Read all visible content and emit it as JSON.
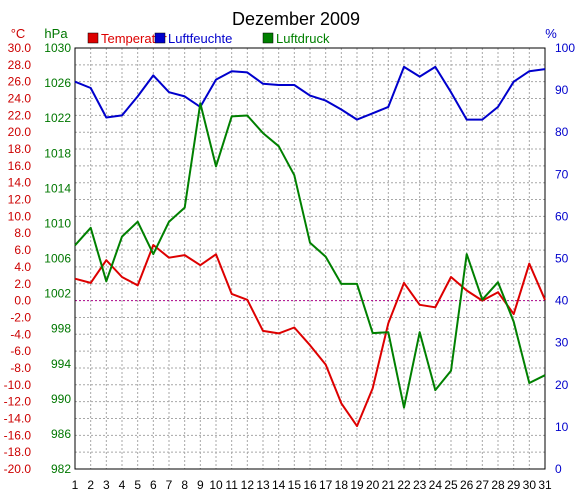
{
  "chart_data": {
    "type": "line",
    "title": "Dezember 2009",
    "x": [
      1,
      2,
      3,
      4,
      5,
      6,
      7,
      8,
      9,
      10,
      11,
      12,
      13,
      14,
      15,
      16,
      17,
      18,
      19,
      20,
      21,
      22,
      23,
      24,
      25,
      26,
      27,
      28,
      29,
      30,
      31
    ],
    "axes": {
      "temperature": {
        "unit": "°C",
        "range": [
          -20,
          30
        ],
        "step": 2,
        "color": "#cc0000"
      },
      "pressure": {
        "unit": "hPa",
        "range": [
          982,
          1030
        ],
        "step": 4,
        "color": "#007700"
      },
      "humidity": {
        "unit": "%",
        "range": [
          0,
          100
        ],
        "step": 10,
        "color": "#0000cc"
      }
    },
    "legend": [
      {
        "name": "Temperatur",
        "color": "#dd0000"
      },
      {
        "name": "Luftfeuchte",
        "color": "#0000cc"
      },
      {
        "name": "Luftdruck",
        "color": "#008000"
      }
    ],
    "series": [
      {
        "name": "Temperatur",
        "axis": "temperature",
        "color": "#dd0000",
        "values": [
          2.6,
          2.1,
          4.8,
          2.8,
          1.8,
          6.6,
          5.1,
          5.4,
          4.2,
          5.5,
          0.8,
          0.1,
          -3.6,
          -3.9,
          -3.2,
          -5.3,
          -7.6,
          -12.2,
          -14.9,
          -10.4,
          -2.7,
          2.1,
          -0.5,
          -0.8,
          2.8,
          1.2,
          0.0,
          1.0,
          -1.6,
          4.4,
          0.1
        ]
      },
      {
        "name": "Luftfeuchte",
        "axis": "humidity",
        "color": "#0000cc",
        "values": [
          92,
          90.5,
          83.5,
          84,
          88.5,
          93.5,
          89.5,
          88.5,
          86,
          92.5,
          94.5,
          94.2,
          91.5,
          91.2,
          91.2,
          88.7,
          87.5,
          85.4,
          83,
          84.5,
          86,
          95.5,
          93.2,
          95.5,
          89.5,
          83,
          83,
          86,
          92,
          94.5,
          95
        ]
      },
      {
        "name": "Luftdruck",
        "axis": "pressure",
        "color": "#008000",
        "values": [
          1007.5,
          1009.5,
          1003.4,
          1008.5,
          1010.2,
          1006.5,
          1010.2,
          1011.8,
          1023.7,
          1016.5,
          1022.2,
          1022.3,
          1020.3,
          1018.8,
          1015.5,
          1007.8,
          1006.2,
          1003.1,
          1003.1,
          997.5,
          997.6,
          989.0,
          997.6,
          991.0,
          993.2,
          1006.5,
          1001.3,
          1003.3,
          998.8,
          991.8,
          992.7
        ]
      }
    ],
    "grid": true,
    "zero_line": true,
    "legend_placement": "top"
  }
}
